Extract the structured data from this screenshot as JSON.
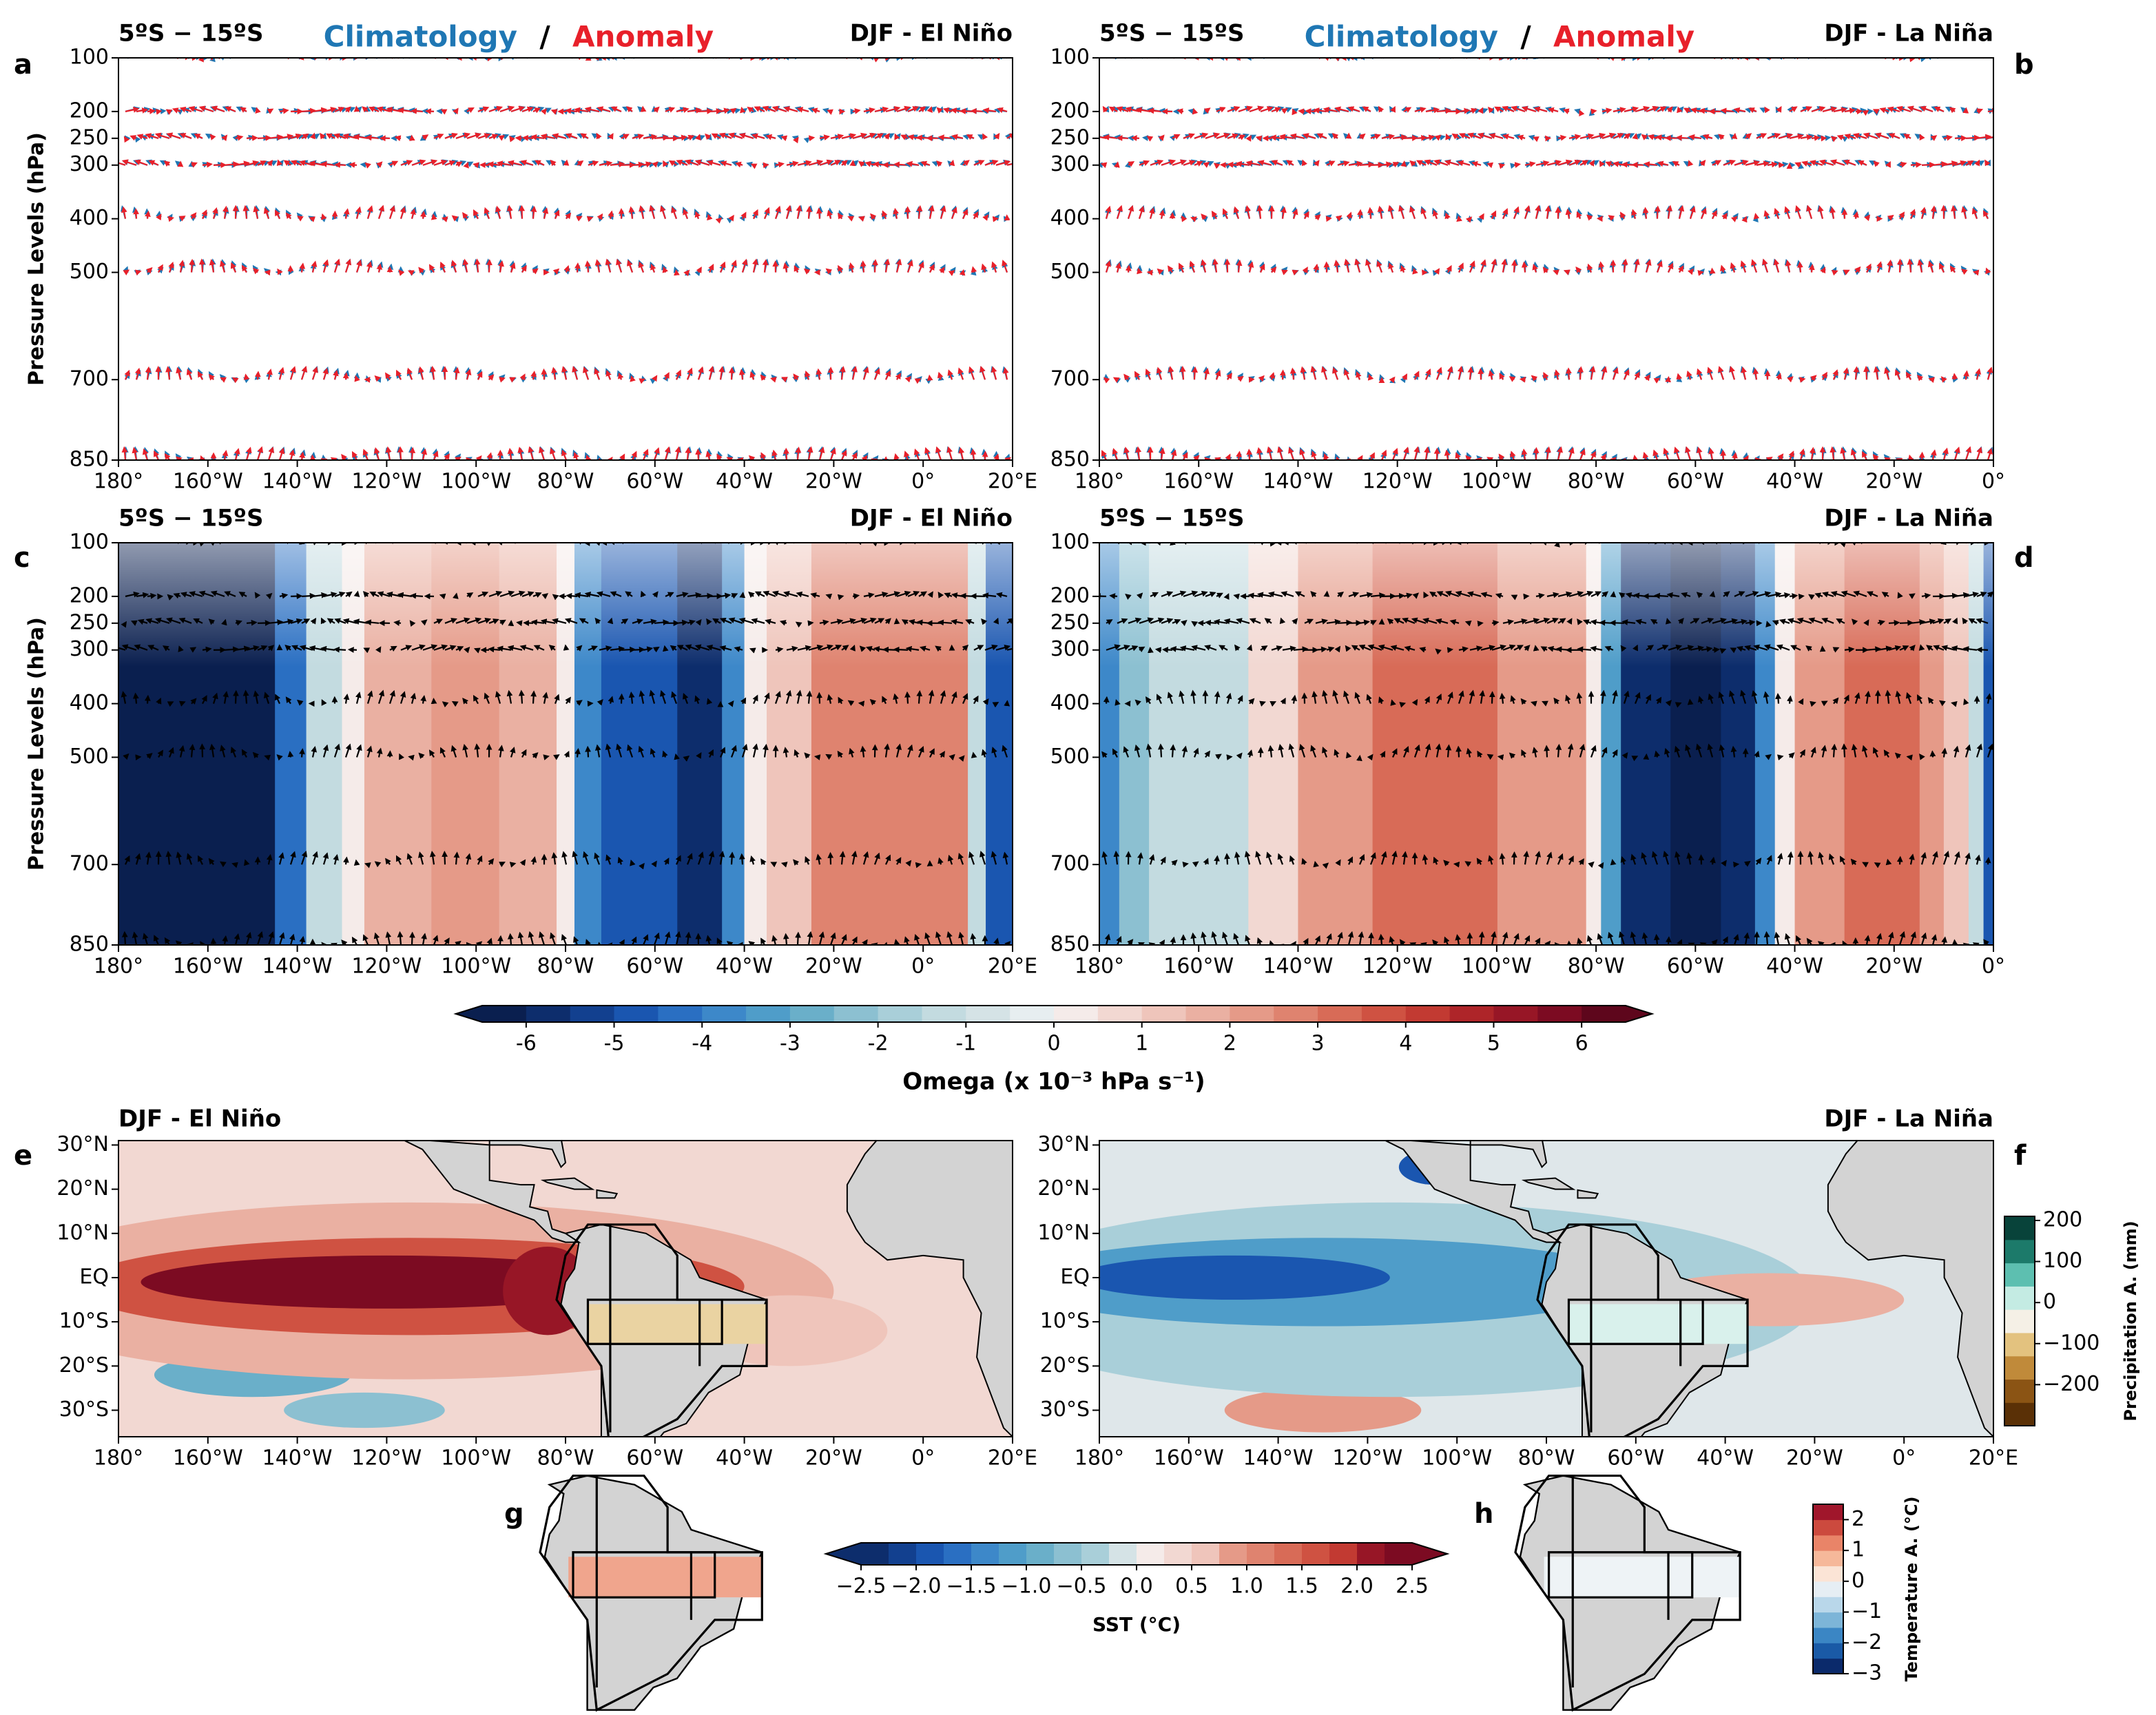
{
  "chart_data": [
    {
      "type": "vector-section",
      "panel_label": "a",
      "title_left": "5ºS − 15ºS",
      "legend": [
        {
          "name": "Climatology",
          "color": "#1f77b4"
        },
        {
          "name": "Anomaly",
          "color": "#e8202a"
        }
      ],
      "legend_separator": "/",
      "title_right": "DJF - El Niño",
      "ylabel": "Pressure Levels (hPa)",
      "ylim": [
        850,
        100
      ],
      "yticks": [
        100,
        200,
        250,
        300,
        400,
        500,
        700,
        850
      ],
      "xlim": [
        -180,
        20
      ],
      "xticks": [
        {
          "value": -180,
          "label": "180°"
        },
        {
          "value": -160,
          "label": "160°W"
        },
        {
          "value": -140,
          "label": "140°W"
        },
        {
          "value": -120,
          "label": "120°W"
        },
        {
          "value": -100,
          "label": "100°W"
        },
        {
          "value": -80,
          "label": "80°W"
        },
        {
          "value": -60,
          "label": "60°W"
        },
        {
          "value": -40,
          "label": "40°W"
        },
        {
          "value": -20,
          "label": "20°W"
        },
        {
          "value": 0,
          "label": "0°"
        },
        {
          "value": 20,
          "label": "20°E"
        }
      ]
    },
    {
      "type": "vector-section",
      "panel_label": "b",
      "title_left": "5ºS − 15ºS",
      "legend": [
        {
          "name": "Climatology",
          "color": "#1f77b4"
        },
        {
          "name": "Anomaly",
          "color": "#e8202a"
        }
      ],
      "legend_separator": "/",
      "title_right": "DJF - La Niña",
      "ylim": [
        850,
        100
      ],
      "yticks": [
        100,
        200,
        250,
        300,
        400,
        500,
        700,
        850
      ],
      "xlim": [
        -180,
        0
      ],
      "xticks": [
        {
          "value": -180,
          "label": "180°"
        },
        {
          "value": -160,
          "label": "160°W"
        },
        {
          "value": -140,
          "label": "140°W"
        },
        {
          "value": -120,
          "label": "120°W"
        },
        {
          "value": -100,
          "label": "100°W"
        },
        {
          "value": -80,
          "label": "80°W"
        },
        {
          "value": -60,
          "label": "60°W"
        },
        {
          "value": -40,
          "label": "40°W"
        },
        {
          "value": -20,
          "label": "20°W"
        },
        {
          "value": 0,
          "label": "0°"
        }
      ]
    },
    {
      "type": "contour-section",
      "panel_label": "c",
      "title_left": "5ºS − 15ºS",
      "title_right": "DJF - El Niño",
      "ylabel": "Pressure Levels (hPa)",
      "ylim": [
        850,
        100
      ],
      "yticks": [
        100,
        200,
        250,
        300,
        400,
        500,
        700,
        850
      ],
      "xlim": [
        -180,
        20
      ],
      "xticks": [
        {
          "value": -180,
          "label": "180°"
        },
        {
          "value": -160,
          "label": "160°W"
        },
        {
          "value": -140,
          "label": "140°W"
        },
        {
          "value": -120,
          "label": "120°W"
        },
        {
          "value": -100,
          "label": "100°W"
        },
        {
          "value": -80,
          "label": "80°W"
        },
        {
          "value": -60,
          "label": "60°W"
        },
        {
          "value": -40,
          "label": "40°W"
        },
        {
          "value": -20,
          "label": "20°W"
        },
        {
          "value": 0,
          "label": "0°"
        },
        {
          "value": 20,
          "label": "20°E"
        }
      ]
    },
    {
      "type": "contour-section",
      "panel_label": "d",
      "title_left": "5ºS − 15ºS",
      "title_right": "DJF - La Niña",
      "ylim": [
        850,
        100
      ],
      "yticks": [
        100,
        200,
        250,
        300,
        400,
        500,
        700,
        850
      ],
      "xlim": [
        -180,
        0
      ],
      "xticks": [
        {
          "value": -180,
          "label": "180°"
        },
        {
          "value": -160,
          "label": "160°W"
        },
        {
          "value": -140,
          "label": "140°W"
        },
        {
          "value": -120,
          "label": "120°W"
        },
        {
          "value": -100,
          "label": "100°W"
        },
        {
          "value": -80,
          "label": "80°W"
        },
        {
          "value": -60,
          "label": "60°W"
        },
        {
          "value": -40,
          "label": "40°W"
        },
        {
          "value": -20,
          "label": "20°W"
        },
        {
          "value": 0,
          "label": "0°"
        }
      ]
    },
    {
      "type": "colorbar",
      "orientation": "horizontal",
      "label": "Omega (x 10⁻³ hPa s⁻¹)",
      "lim": [
        -6.5,
        6.5
      ],
      "ticks": [
        -6,
        -5,
        -4,
        -3,
        -2,
        -1,
        0,
        1,
        2,
        3,
        4,
        5,
        6
      ],
      "colors": [
        "#0a1f4f",
        "#0d2d6c",
        "#12408f",
        "#1a56b0",
        "#2a6fc2",
        "#3d88c9",
        "#4f9dc9",
        "#6aafc9",
        "#8cc0d1",
        "#a9cfd9",
        "#c3dbe0",
        "#d5e3e6",
        "#e7eef0",
        "#f5ebe9",
        "#f2d8d2",
        "#efc5bb",
        "#eab0a2",
        "#e59a88",
        "#df836f",
        "#d86b57",
        "#cf5242",
        "#c23a32",
        "#ae2529",
        "#971626",
        "#7c0b22",
        "#5e061c"
      ]
    },
    {
      "type": "map",
      "panel_label": "e",
      "title": "DJF - El Niño",
      "xlim": [
        -180,
        20
      ],
      "ylim": [
        -36,
        31
      ],
      "xticks": [
        {
          "value": -180,
          "label": "180°"
        },
        {
          "value": -160,
          "label": "160°W"
        },
        {
          "value": -140,
          "label": "140°W"
        },
        {
          "value": -120,
          "label": "120°W"
        },
        {
          "value": -100,
          "label": "100°W"
        },
        {
          "value": -80,
          "label": "80°W"
        },
        {
          "value": -60,
          "label": "60°W"
        },
        {
          "value": -40,
          "label": "40°W"
        },
        {
          "value": -20,
          "label": "20°W"
        },
        {
          "value": 0,
          "label": "0°"
        },
        {
          "value": 20,
          "label": "20°E"
        }
      ],
      "yticks": [
        {
          "value": 30,
          "label": "30°N"
        },
        {
          "value": 20,
          "label": "20°N"
        },
        {
          "value": 10,
          "label": "10°N"
        },
        {
          "value": 0,
          "label": "EQ"
        },
        {
          "value": -10,
          "label": "10°S"
        },
        {
          "value": -20,
          "label": "20°S"
        },
        {
          "value": -30,
          "label": "30°S"
        }
      ]
    },
    {
      "type": "map",
      "panel_label": "f",
      "title": "DJF - La Niña",
      "xlim": [
        -180,
        20
      ],
      "ylim": [
        -36,
        31
      ],
      "xticks": [
        {
          "value": -180,
          "label": "180°"
        },
        {
          "value": -160,
          "label": "160°W"
        },
        {
          "value": -140,
          "label": "140°W"
        },
        {
          "value": -120,
          "label": "120°W"
        },
        {
          "value": -100,
          "label": "100°W"
        },
        {
          "value": -80,
          "label": "80°W"
        },
        {
          "value": -60,
          "label": "60°W"
        },
        {
          "value": -40,
          "label": "40°W"
        },
        {
          "value": -20,
          "label": "20°W"
        },
        {
          "value": 0,
          "label": "0°"
        },
        {
          "value": 20,
          "label": "20°E"
        }
      ],
      "yticks": [
        {
          "value": 30,
          "label": "30°N"
        },
        {
          "value": 20,
          "label": "20°N"
        },
        {
          "value": 10,
          "label": "10°N"
        },
        {
          "value": 0,
          "label": "EQ"
        },
        {
          "value": -10,
          "label": "10°S"
        },
        {
          "value": -20,
          "label": "20°S"
        },
        {
          "value": -30,
          "label": "30°S"
        }
      ]
    },
    {
      "type": "map-inset",
      "panel_label": "g"
    },
    {
      "type": "map-inset",
      "panel_label": "h"
    },
    {
      "type": "colorbar",
      "orientation": "horizontal",
      "label": "SST (°C)",
      "lim": [
        -2.5,
        2.5
      ],
      "ticks": [
        {
          "value": -2.5,
          "label": "−2.5"
        },
        {
          "value": -2,
          "label": "−2.0"
        },
        {
          "value": -1.5,
          "label": "−1.5"
        },
        {
          "value": -1,
          "label": "−1.0"
        },
        {
          "value": -0.5,
          "label": "−0.5"
        },
        {
          "value": 0,
          "label": "0.0"
        },
        0.5,
        {
          "value": 1,
          "label": "1.0"
        },
        1.5,
        {
          "value": 2,
          "label": "2.0"
        },
        2.5
      ],
      "colors": [
        "#0d2d6c",
        "#12408f",
        "#1a56b0",
        "#2a6fc2",
        "#3d88c9",
        "#4f9dc9",
        "#6aafc9",
        "#8cc0d1",
        "#a9cfd9",
        "#d5e3e6",
        "#f5ebe9",
        "#f2d8d2",
        "#efc5bb",
        "#e59a88",
        "#df836f",
        "#d86b57",
        "#cf5242",
        "#c23a32",
        "#971626",
        "#7c0b22"
      ]
    },
    {
      "type": "colorbar",
      "orientation": "vertical",
      "label": "Precipitation A. (mm)",
      "lim": [
        -300,
        210
      ],
      "ticks": [
        200,
        100,
        0,
        {
          "value": -100,
          "label": "−100"
        },
        {
          "value": -200,
          "label": "−200"
        }
      ],
      "colors": [
        "#5a3006",
        "#8b5414",
        "#c08a3a",
        "#e3c27f",
        "#f5f0e6",
        "#c4ebe3",
        "#5dbfb0",
        "#1c7a6a",
        "#08433a"
      ]
    },
    {
      "type": "colorbar",
      "orientation": "vertical",
      "label": "Temperature A. (°C)",
      "lim": [
        -3,
        2.5
      ],
      "ticks": [
        2,
        1,
        0,
        {
          "value": -1,
          "label": "−1"
        },
        {
          "value": -2,
          "label": "−2"
        },
        {
          "value": -3,
          "label": "−3"
        }
      ],
      "colors": [
        "#0b2a6b",
        "#1a5aa6",
        "#3b86c4",
        "#7db5d8",
        "#b9d7ea",
        "#e6eef4",
        "#fbe4d6",
        "#f6b89a",
        "#e98468",
        "#cc4a3e",
        "#a0162b"
      ]
    }
  ]
}
